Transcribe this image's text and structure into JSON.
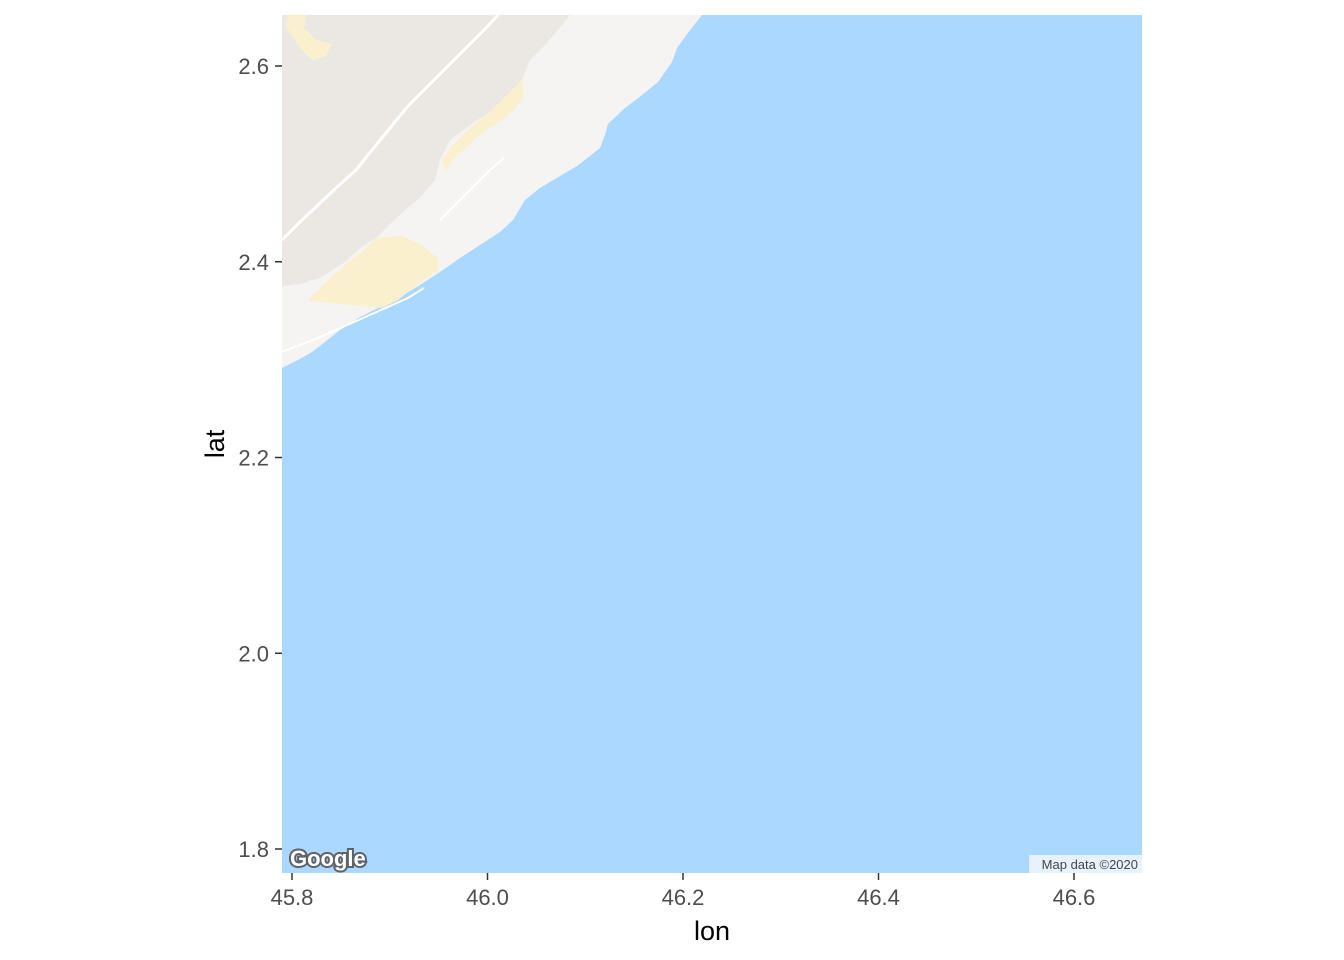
{
  "map": {
    "attribution": "Map data ©2020",
    "logo_text": "Google",
    "colors": {
      "water": "#aad8fe",
      "land": "#f5f4f2",
      "terrain": "#ebe8e4",
      "sand": "#faf0cd",
      "road": "#ffffff"
    }
  },
  "axes": {
    "x": {
      "title": "lon",
      "ticks": [
        {
          "value": 45.8,
          "label": "45.8"
        },
        {
          "value": 46.0,
          "label": "46.0"
        },
        {
          "value": 46.2,
          "label": "46.2"
        },
        {
          "value": 46.4,
          "label": "46.4"
        },
        {
          "value": 46.6,
          "label": "46.6"
        }
      ]
    },
    "y": {
      "title": "lat",
      "ticks": [
        {
          "value": 1.8,
          "label": "1.8"
        },
        {
          "value": 2.0,
          "label": "2.0"
        },
        {
          "value": 2.2,
          "label": "2.2"
        },
        {
          "value": 2.4,
          "label": "2.4"
        },
        {
          "value": 2.6,
          "label": "2.6"
        }
      ]
    }
  }
}
